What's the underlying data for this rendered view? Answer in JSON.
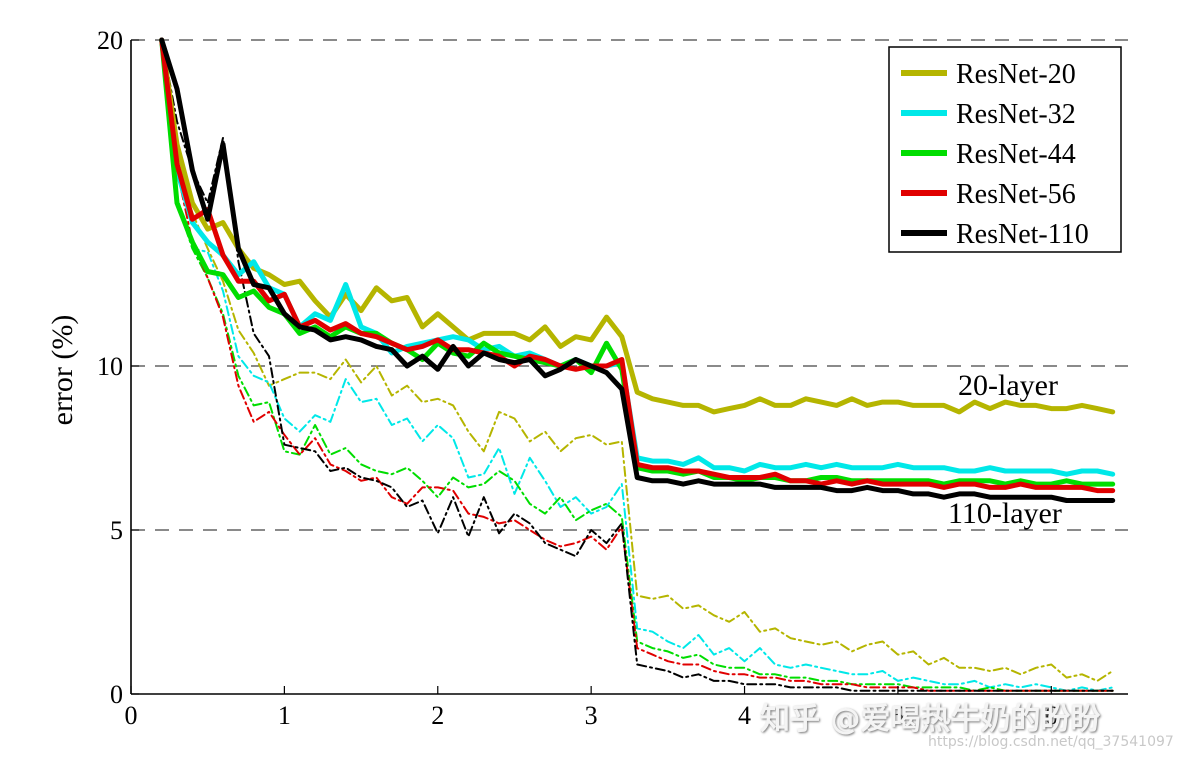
{
  "chart_data": {
    "type": "line",
    "ylabel": "error (%)",
    "xlabel": "",
    "xlim": [
      0,
      6.5
    ],
    "x_ticks": [
      "0",
      "1",
      "2",
      "3",
      "4",
      "5",
      "6"
    ],
    "y_ticks": [
      "0",
      "5",
      "10",
      "20"
    ],
    "y_scale": "piecewise (0–5, 5–10, 10–20 equally spaced bands)",
    "grid": "dashed horizontal lines at 5, 10, 20",
    "legend_position": "top-right",
    "annotations": [
      {
        "text": "20-layer",
        "x": 5.4,
        "y": 9.4
      },
      {
        "text": "110-layer",
        "x": 5.4,
        "y": 5.4
      }
    ],
    "x": [
      0.2,
      0.3,
      0.4,
      0.5,
      0.6,
      0.7,
      0.8,
      0.9,
      1.0,
      1.1,
      1.2,
      1.3,
      1.4,
      1.5,
      1.6,
      1.7,
      1.8,
      1.9,
      2.0,
      2.1,
      2.2,
      2.3,
      2.4,
      2.5,
      2.6,
      2.7,
      2.8,
      2.9,
      3.0,
      3.1,
      3.2,
      3.3,
      3.4,
      3.5,
      3.6,
      3.7,
      3.8,
      3.9,
      4.0,
      4.1,
      4.2,
      4.3,
      4.4,
      4.5,
      4.6,
      4.7,
      4.8,
      4.9,
      5.0,
      5.1,
      5.2,
      5.3,
      5.4,
      5.5,
      5.6,
      5.7,
      5.8,
      5.9,
      6.0,
      6.1,
      6.2,
      6.3,
      6.4
    ],
    "series": [
      {
        "name": "ResNet-20",
        "color": "#b5b500",
        "style": "train-dashdot",
        "values": [
          20,
          16.2,
          14.7,
          13.6,
          12.6,
          11.1,
          10.4,
          9.4,
          9.6,
          9.8,
          9.8,
          9.6,
          10.2,
          9.5,
          10.0,
          9.1,
          9.4,
          8.9,
          9.0,
          8.8,
          8.0,
          7.4,
          8.6,
          8.4,
          7.7,
          8.0,
          7.4,
          7.8,
          7.9,
          7.6,
          7.7,
          3.0,
          2.9,
          3.0,
          2.6,
          2.7,
          2.4,
          2.2,
          2.5,
          1.9,
          2.0,
          1.7,
          1.6,
          1.5,
          1.6,
          1.3,
          1.5,
          1.6,
          1.2,
          1.3,
          0.9,
          1.1,
          0.8,
          0.8,
          0.7,
          0.8,
          0.6,
          0.8,
          0.9,
          0.5,
          0.6,
          0.4,
          0.7
        ]
      },
      {
        "name": "ResNet-32",
        "color": "#00e8e8",
        "style": "train-dashdot",
        "values": [
          20,
          15.2,
          13.6,
          13.5,
          12.3,
          10.3,
          9.7,
          9.5,
          8.4,
          8.0,
          8.5,
          8.3,
          9.6,
          8.9,
          9.0,
          8.2,
          8.4,
          7.7,
          8.2,
          7.8,
          6.6,
          6.7,
          7.5,
          6.1,
          7.2,
          6.5,
          5.7,
          6.0,
          5.5,
          5.7,
          6.4,
          2.0,
          1.9,
          1.6,
          1.4,
          1.8,
          1.2,
          1.4,
          1.0,
          1.4,
          0.9,
          0.8,
          0.9,
          0.8,
          0.7,
          0.6,
          0.6,
          0.7,
          0.4,
          0.5,
          0.4,
          0.3,
          0.3,
          0.4,
          0.2,
          0.3,
          0.2,
          0.3,
          0.2,
          0.1,
          0.2,
          0.1,
          0.2
        ]
      },
      {
        "name": "ResNet-44",
        "color": "#00dd00",
        "style": "train-dashdot",
        "values": [
          20,
          15.0,
          13.6,
          12.7,
          11.6,
          9.7,
          8.8,
          8.9,
          7.4,
          7.3,
          8.2,
          7.3,
          7.5,
          7.0,
          6.8,
          6.7,
          6.9,
          6.5,
          6.0,
          6.6,
          6.3,
          6.4,
          6.8,
          6.5,
          5.8,
          5.5,
          6.0,
          5.3,
          5.6,
          5.8,
          5.4,
          1.6,
          1.4,
          1.3,
          1.1,
          1.2,
          0.9,
          0.8,
          0.8,
          0.6,
          0.6,
          0.5,
          0.5,
          0.4,
          0.4,
          0.3,
          0.3,
          0.3,
          0.3,
          0.2,
          0.2,
          0.2,
          0.2,
          0.1,
          0.2,
          0.1,
          0.1,
          0.1,
          0.1,
          0.1,
          0.1,
          0.1,
          0.1
        ]
      },
      {
        "name": "ResNet-56",
        "color": "#e00000",
        "style": "train-dashdot",
        "values": [
          20,
          16.0,
          13.8,
          12.7,
          11.5,
          9.4,
          8.3,
          8.6,
          7.9,
          7.3,
          7.8,
          7.0,
          6.8,
          6.5,
          6.6,
          6.0,
          5.8,
          6.3,
          6.3,
          6.2,
          5.5,
          5.4,
          5.2,
          5.3,
          5.0,
          4.7,
          4.5,
          4.6,
          4.8,
          4.4,
          5.1,
          1.4,
          1.2,
          1.0,
          0.9,
          0.9,
          0.7,
          0.6,
          0.6,
          0.5,
          0.5,
          0.4,
          0.4,
          0.3,
          0.3,
          0.3,
          0.2,
          0.2,
          0.2,
          0.2,
          0.1,
          0.1,
          0.1,
          0.1,
          0.1,
          0.1,
          0.1,
          0.1,
          0.1,
          0.1,
          0.1,
          0.1,
          0.1
        ]
      },
      {
        "name": "ResNet-110",
        "color": "#000000",
        "style": "train-dashdot",
        "values": [
          20,
          17.5,
          16.0,
          15.0,
          17.0,
          13.2,
          11.0,
          10.3,
          7.6,
          7.5,
          7.4,
          6.8,
          6.9,
          6.6,
          6.5,
          6.3,
          5.7,
          5.9,
          4.9,
          6.0,
          4.8,
          6.0,
          4.9,
          5.5,
          5.2,
          4.6,
          4.4,
          4.2,
          5.0,
          4.6,
          5.2,
          0.9,
          0.8,
          0.7,
          0.5,
          0.6,
          0.4,
          0.4,
          0.3,
          0.3,
          0.3,
          0.2,
          0.2,
          0.2,
          0.2,
          0.1,
          0.1,
          0.1,
          0.1,
          0.1,
          0.1,
          0.1,
          0.1,
          0.1,
          0.1,
          0.1,
          0.1,
          0.1,
          0.1,
          0.1,
          0.1,
          0.1,
          0.1
        ]
      },
      {
        "name": "ResNet-20",
        "color": "#b5b500",
        "style": "test-solid",
        "values": [
          20,
          16.8,
          15.0,
          14.2,
          14.4,
          13.6,
          13.0,
          12.8,
          12.5,
          12.6,
          12.0,
          11.5,
          12.2,
          11.7,
          12.4,
          12.0,
          12.1,
          11.2,
          11.6,
          11.2,
          10.8,
          11.0,
          11.0,
          11.0,
          10.8,
          11.2,
          10.6,
          10.9,
          10.8,
          11.5,
          10.9,
          9.2,
          9.0,
          8.9,
          8.8,
          8.8,
          8.6,
          8.7,
          8.8,
          9.0,
          8.8,
          8.8,
          9.0,
          8.9,
          8.8,
          9.0,
          8.8,
          8.9,
          8.9,
          8.8,
          8.8,
          8.8,
          8.6,
          8.9,
          8.7,
          8.9,
          8.8,
          8.8,
          8.7,
          8.7,
          8.8,
          8.7,
          8.6
        ]
      },
      {
        "name": "ResNet-32",
        "color": "#00e8e8",
        "style": "test-solid",
        "values": [
          20,
          16.0,
          14.4,
          13.8,
          13.4,
          12.8,
          13.2,
          12.4,
          12.2,
          11.2,
          11.6,
          11.4,
          12.5,
          11.2,
          11.0,
          10.4,
          10.6,
          10.7,
          10.8,
          10.9,
          10.8,
          10.5,
          10.6,
          10.3,
          10.4,
          10.2,
          10.0,
          10.2,
          10.0,
          10.0,
          10.1,
          7.2,
          7.1,
          7.1,
          7.0,
          7.2,
          6.9,
          6.9,
          6.8,
          7.0,
          6.9,
          6.9,
          7.0,
          6.9,
          7.0,
          6.9,
          6.9,
          6.9,
          7.0,
          6.9,
          6.9,
          6.9,
          6.8,
          6.8,
          6.9,
          6.8,
          6.8,
          6.8,
          6.8,
          6.7,
          6.8,
          6.8,
          6.7
        ]
      },
      {
        "name": "ResNet-44",
        "color": "#00dd00",
        "style": "test-solid",
        "values": [
          20,
          15.0,
          13.8,
          12.9,
          12.8,
          12.1,
          12.3,
          11.8,
          11.6,
          11.0,
          11.2,
          10.9,
          11.2,
          11.0,
          11.0,
          10.7,
          10.5,
          10.2,
          10.7,
          10.4,
          10.3,
          10.7,
          10.4,
          10.3,
          10.2,
          10.1,
          10.0,
          10.2,
          9.8,
          10.7,
          9.9,
          6.9,
          6.8,
          6.8,
          6.7,
          6.8,
          6.6,
          6.6,
          6.5,
          6.6,
          6.6,
          6.5,
          6.5,
          6.6,
          6.6,
          6.5,
          6.5,
          6.5,
          6.5,
          6.5,
          6.5,
          6.4,
          6.5,
          6.5,
          6.5,
          6.4,
          6.5,
          6.4,
          6.4,
          6.5,
          6.4,
          6.4,
          6.4
        ]
      },
      {
        "name": "ResNet-56",
        "color": "#e00000",
        "style": "test-solid",
        "values": [
          20,
          16.2,
          14.5,
          14.8,
          13.4,
          12.6,
          12.6,
          12.0,
          12.2,
          11.2,
          11.4,
          11.1,
          11.3,
          11.0,
          10.9,
          10.7,
          10.5,
          10.6,
          10.8,
          10.5,
          10.5,
          10.4,
          10.3,
          10.0,
          10.3,
          10.2,
          10.0,
          9.9,
          10.0,
          10.0,
          10.2,
          7.0,
          6.9,
          6.9,
          6.8,
          6.8,
          6.7,
          6.6,
          6.6,
          6.6,
          6.7,
          6.5,
          6.5,
          6.4,
          6.5,
          6.4,
          6.5,
          6.4,
          6.4,
          6.4,
          6.4,
          6.3,
          6.4,
          6.4,
          6.3,
          6.3,
          6.4,
          6.3,
          6.3,
          6.3,
          6.3,
          6.2,
          6.2
        ]
      },
      {
        "name": "ResNet-110",
        "color": "#000000",
        "style": "test-solid",
        "values": [
          20,
          18.5,
          16.0,
          14.5,
          16.8,
          13.6,
          12.5,
          12.4,
          11.6,
          11.2,
          11.1,
          10.8,
          10.9,
          10.8,
          10.6,
          10.5,
          10.0,
          10.3,
          9.9,
          10.6,
          10.0,
          10.4,
          10.2,
          10.1,
          10.2,
          9.7,
          9.9,
          10.2,
          10.0,
          9.8,
          9.3,
          6.6,
          6.5,
          6.5,
          6.4,
          6.5,
          6.4,
          6.4,
          6.4,
          6.4,
          6.3,
          6.3,
          6.3,
          6.3,
          6.2,
          6.2,
          6.3,
          6.2,
          6.2,
          6.1,
          6.1,
          6.0,
          6.1,
          6.1,
          6.0,
          6.0,
          6.0,
          6.0,
          6.0,
          5.9,
          5.9,
          5.9,
          5.9
        ]
      }
    ],
    "legend": [
      {
        "label": "ResNet-20",
        "color": "#b5b500"
      },
      {
        "label": "ResNet-32",
        "color": "#00e8e8"
      },
      {
        "label": "ResNet-44",
        "color": "#00dd00"
      },
      {
        "label": "ResNet-56",
        "color": "#e00000"
      },
      {
        "label": "ResNet-110",
        "color": "#000000"
      }
    ]
  },
  "watermark": {
    "main": "知乎 @爱喝热牛奶的盼盼",
    "url": "https://blog.csdn.net/qq_37541097"
  }
}
